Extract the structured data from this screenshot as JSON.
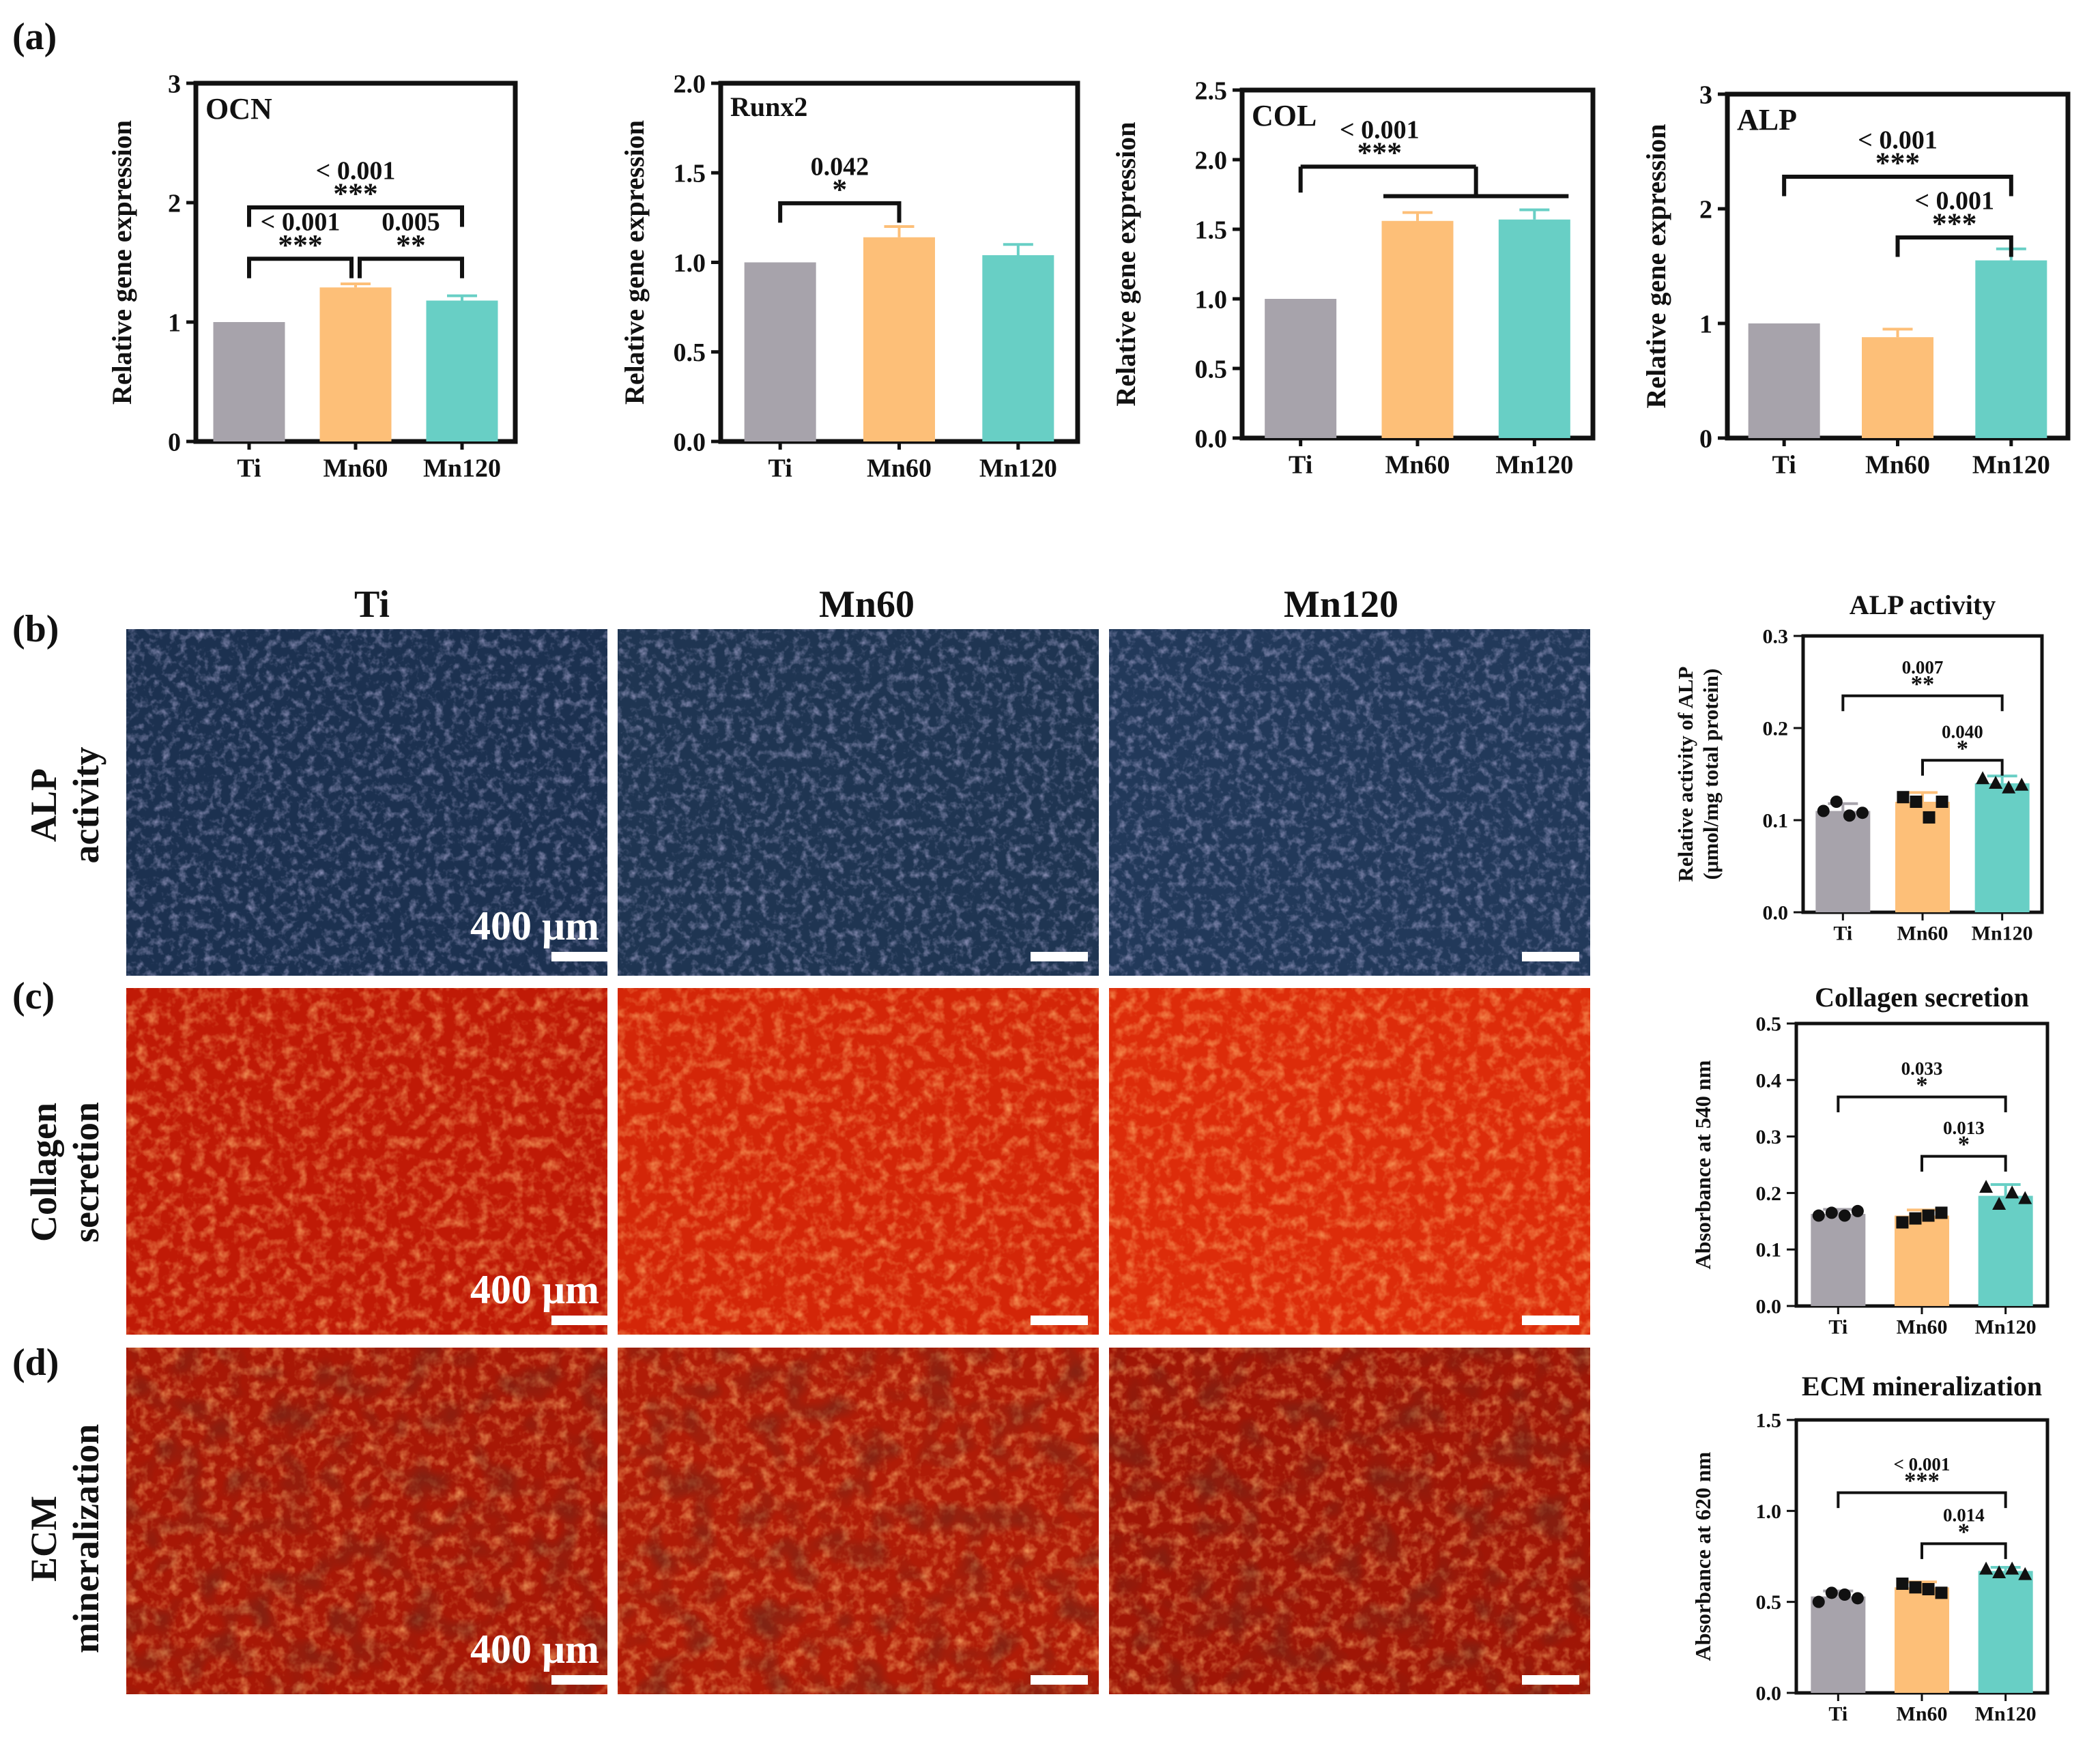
{
  "colors": {
    "Ti": "#a7a3ab",
    "Mn60": "#fdbf78",
    "Mn120": "#68cfc5",
    "alp_stain_bg": "#1f3552",
    "alp_stain_speck": "#8b83c9",
    "collagen_bg": "#c71d07",
    "collagen_speck": "#ff6a2a",
    "ecm_bg": "#9c1606",
    "ecm_speck": "#ff5522"
  },
  "panel_labels": [
    "(a)",
    "(b)",
    "(c)",
    "(d)"
  ],
  "column_titles": [
    "Ti",
    "Mn60",
    "Mn120"
  ],
  "row_titles": [
    {
      "line1": "ALP",
      "line2": "activity"
    },
    {
      "line1": "Collagen",
      "line2": "secretion"
    },
    {
      "line1": "ECM",
      "line2": "mineralization"
    }
  ],
  "scale_bar_label": "400 μm",
  "chart_data": [
    {
      "type": "bar",
      "id": "ocn",
      "title": "OCN",
      "ylabel": "Relative gene expression",
      "categories": [
        "Ti",
        "Mn60",
        "Mn120"
      ],
      "values": [
        1.0,
        1.29,
        1.18
      ],
      "errors": [
        0,
        0.03,
        0.04
      ],
      "ylim": [
        0,
        3
      ],
      "yticks": [
        "0",
        "1",
        "2",
        "3"
      ],
      "comparisons": [
        {
          "from": 0,
          "to": 2,
          "p": "< 0.001",
          "stars": "***"
        },
        {
          "from": 0,
          "to": 1,
          "p": "< 0.001",
          "stars": "***"
        },
        {
          "from": 1,
          "to": 2,
          "p": "0.005",
          "stars": "**"
        }
      ]
    },
    {
      "type": "bar",
      "id": "runx2",
      "title": "Runx2",
      "ylabel": "Relative gene expression",
      "categories": [
        "Ti",
        "Mn60",
        "Mn120"
      ],
      "values": [
        1.0,
        1.14,
        1.04
      ],
      "errors": [
        0,
        0.06,
        0.06
      ],
      "ylim": [
        0,
        2
      ],
      "yticks": [
        "0.0",
        "0.5",
        "1.0",
        "1.5",
        "2.0"
      ],
      "comparisons": [
        {
          "from": 0,
          "to": 1,
          "p": "0.042",
          "stars": "*"
        }
      ]
    },
    {
      "type": "bar",
      "id": "col",
      "title": "COL",
      "ylabel": "Relative gene expression",
      "categories": [
        "Ti",
        "Mn60",
        "Mn120"
      ],
      "values": [
        1.0,
        1.56,
        1.57
      ],
      "errors": [
        0,
        0.06,
        0.07
      ],
      "ylim": [
        0,
        2.5
      ],
      "yticks": [
        "0.0",
        "0.5",
        "1.0",
        "1.5",
        "2.0",
        "2.5"
      ],
      "comparisons": [
        {
          "from": 0,
          "to": "1-2",
          "p": "< 0.001",
          "stars": "***"
        }
      ]
    },
    {
      "type": "bar",
      "id": "alp_gene",
      "title": "ALP",
      "ylabel": "Relative gene expression",
      "categories": [
        "Ti",
        "Mn60",
        "Mn120"
      ],
      "values": [
        1.0,
        0.88,
        1.55
      ],
      "errors": [
        0,
        0.07,
        0.1
      ],
      "ylim": [
        0,
        3
      ],
      "yticks": [
        "0",
        "1",
        "2",
        "3"
      ],
      "comparisons": [
        {
          "from": 0,
          "to": 2,
          "p": "< 0.001",
          "stars": "***"
        },
        {
          "from": 1,
          "to": 2,
          "p": "< 0.001",
          "stars": "***"
        }
      ]
    },
    {
      "type": "bar",
      "id": "alp_activity",
      "title": "ALP activity",
      "ylabel_line1": "Relative activity of ALP",
      "ylabel_line2": "(μmol/mg total protein)",
      "categories": [
        "Ti",
        "Mn60",
        "Mn120"
      ],
      "values": [
        0.11,
        0.12,
        0.14
      ],
      "errors": [
        0.008,
        0.01,
        0.008
      ],
      "points": [
        [
          0.11,
          0.12,
          0.105,
          0.108
        ],
        [
          0.125,
          0.12,
          0.103,
          0.12
        ],
        [
          0.145,
          0.14,
          0.135,
          0.138
        ]
      ],
      "markers": [
        "circle",
        "square",
        "triangle"
      ],
      "ylim": [
        0,
        0.3
      ],
      "yticks": [
        "0.0",
        "0.1",
        "0.2",
        "0.3"
      ],
      "comparisons": [
        {
          "from": 0,
          "to": 2,
          "p": "0.007",
          "stars": "**"
        },
        {
          "from": 1,
          "to": 2,
          "p": "0.040",
          "stars": "*"
        }
      ]
    },
    {
      "type": "bar",
      "id": "collagen",
      "title": "Collagen secretion",
      "ylabel": "Absorbance at 540 nm",
      "categories": [
        "Ti",
        "Mn60",
        "Mn120"
      ],
      "values": [
        0.163,
        0.16,
        0.195
      ],
      "errors": [
        0.008,
        0.01,
        0.02
      ],
      "points": [
        [
          0.16,
          0.165,
          0.16,
          0.168
        ],
        [
          0.148,
          0.155,
          0.16,
          0.165
        ],
        [
          0.21,
          0.18,
          0.2,
          0.19
        ]
      ],
      "markers": [
        "circle",
        "square",
        "triangle"
      ],
      "ylim": [
        0,
        0.5
      ],
      "yticks": [
        "0.0",
        "0.1",
        "0.2",
        "0.3",
        "0.4",
        "0.5"
      ],
      "comparisons": [
        {
          "from": 0,
          "to": 2,
          "p": "0.033",
          "stars": "*"
        },
        {
          "from": 1,
          "to": 2,
          "p": "0.013",
          "stars": "*"
        }
      ]
    },
    {
      "type": "bar",
      "id": "ecm",
      "title": "ECM mineralization",
      "ylabel": "Absorbance at 620 nm",
      "categories": [
        "Ti",
        "Mn60",
        "Mn120"
      ],
      "values": [
        0.53,
        0.58,
        0.67
      ],
      "errors": [
        0.03,
        0.03,
        0.02
      ],
      "points": [
        [
          0.5,
          0.55,
          0.54,
          0.52
        ],
        [
          0.6,
          0.58,
          0.57,
          0.55
        ],
        [
          0.68,
          0.66,
          0.68,
          0.65
        ]
      ],
      "markers": [
        "circle",
        "square",
        "triangle"
      ],
      "ylim": [
        0,
        1.5
      ],
      "yticks": [
        "0.0",
        "0.5",
        "1.0",
        "1.5"
      ],
      "comparisons": [
        {
          "from": 0,
          "to": 2,
          "p": "< 0.001",
          "stars": "***"
        },
        {
          "from": 1,
          "to": 2,
          "p": "0.014",
          "stars": "*"
        }
      ]
    }
  ]
}
